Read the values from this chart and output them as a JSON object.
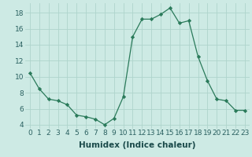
{
  "x": [
    0,
    1,
    2,
    3,
    4,
    5,
    6,
    7,
    8,
    9,
    10,
    11,
    12,
    13,
    14,
    15,
    16,
    17,
    18,
    19,
    20,
    21,
    22,
    23
  ],
  "y": [
    10.5,
    8.5,
    7.2,
    7.0,
    6.5,
    5.2,
    5.0,
    4.7,
    4.0,
    4.8,
    7.5,
    15.0,
    17.2,
    17.2,
    17.8,
    18.6,
    16.7,
    17.0,
    12.5,
    9.5,
    7.2,
    7.0,
    5.8,
    5.8
  ],
  "line_color": "#2a7a5a",
  "marker_color": "#2a7a5a",
  "bg_color": "#cdeae4",
  "grid_color": "#aed4cc",
  "xlabel": "Humidex (Indice chaleur)",
  "ylim": [
    3.5,
    19.2
  ],
  "xlim": [
    -0.5,
    23.5
  ],
  "yticks": [
    4,
    6,
    8,
    10,
    12,
    14,
    16,
    18
  ],
  "xticks": [
    0,
    1,
    2,
    3,
    4,
    5,
    6,
    7,
    8,
    9,
    10,
    11,
    12,
    13,
    14,
    15,
    16,
    17,
    18,
    19,
    20,
    21,
    22,
    23
  ],
  "xtick_labels": [
    "0",
    "1",
    "2",
    "3",
    "4",
    "5",
    "6",
    "7",
    "8",
    "9",
    "10",
    "11",
    "12",
    "13",
    "14",
    "15",
    "16",
    "17",
    "18",
    "19",
    "20",
    "21",
    "22",
    "23"
  ],
  "font_size": 6.5,
  "xlabel_font_size": 7.5
}
